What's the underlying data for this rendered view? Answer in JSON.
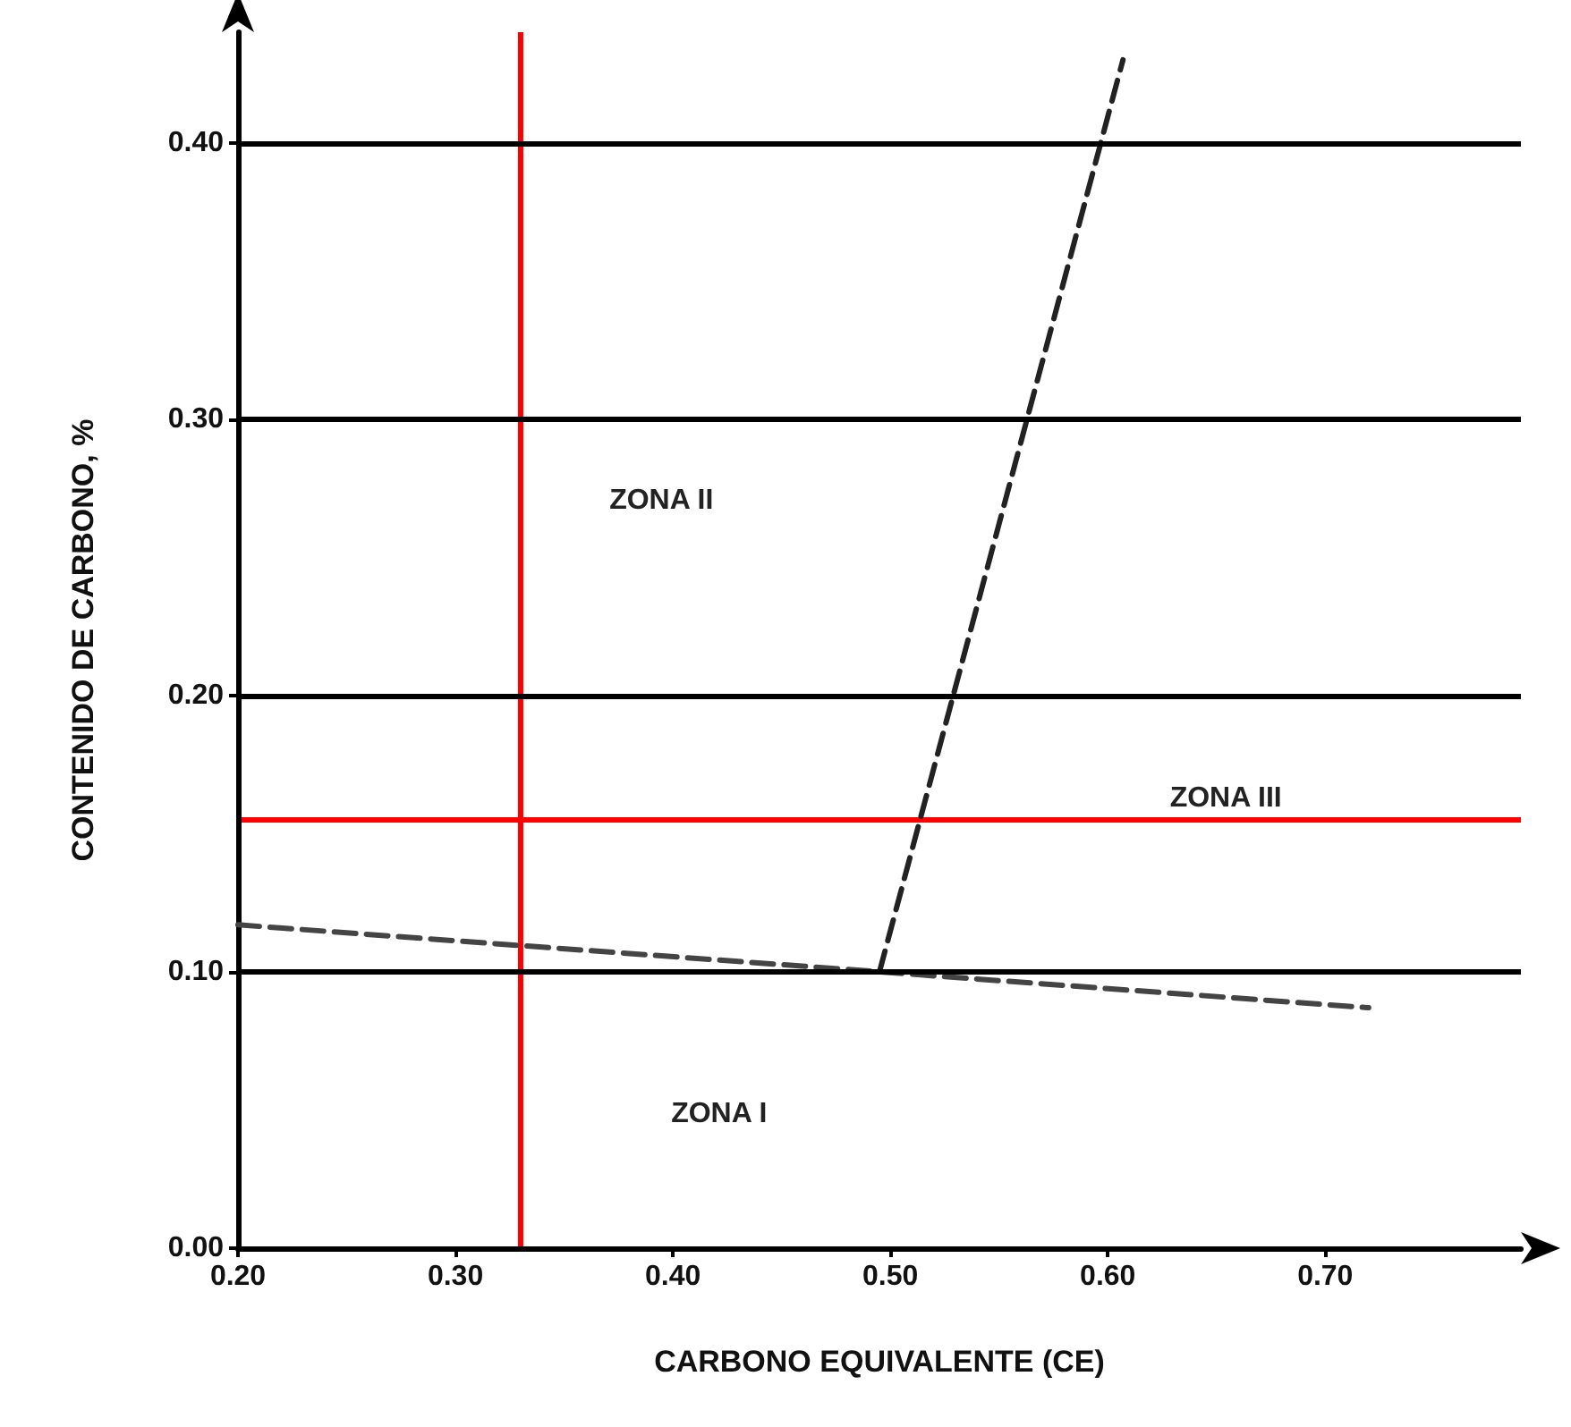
{
  "chart_data": {
    "type": "line",
    "xlabel": "CARBONO EQUIVALENTE (CE)",
    "ylabel": "CONTENIDO DE CARBONO, %",
    "xlim": [
      0.2,
      0.79
    ],
    "ylim": [
      0,
      0.44
    ],
    "xticks": [
      {
        "value": 0.2,
        "label": "0.20"
      },
      {
        "value": 0.3,
        "label": "0.30"
      },
      {
        "value": 0.4,
        "label": "0.40"
      },
      {
        "value": 0.5,
        "label": "0.50"
      },
      {
        "value": 0.6,
        "label": "0.60"
      },
      {
        "value": 0.7,
        "label": "0.70"
      }
    ],
    "yticks": [
      {
        "value": 0,
        "label": "0.00"
      },
      {
        "value": 0.1,
        "label": "0.10"
      },
      {
        "value": 0.2,
        "label": "0.20"
      },
      {
        "value": 0.3,
        "label": "0.30"
      },
      {
        "value": 0.4,
        "label": "0.40"
      }
    ],
    "grid": "y",
    "marker": "none",
    "line_style": "dashed",
    "series": [
      {
        "color": "#444444",
        "x": [
          0.2,
          0.495,
          0.72
        ],
        "values": [
          0.117,
          0.1,
          0.087
        ]
      },
      {
        "color": "#222222",
        "x": [
          0.495,
          0.607
        ],
        "values": [
          0.1,
          0.43
        ]
      }
    ],
    "ref_lines": [
      {
        "axis": "x",
        "value": 0.33,
        "label": null,
        "color": "#ff0000"
      },
      {
        "axis": "y",
        "value": 0.155,
        "label": null,
        "color": "#ff0000"
      }
    ],
    "annotations": [
      "ZONA II",
      "ZONA III",
      "ZONA I"
    ]
  }
}
